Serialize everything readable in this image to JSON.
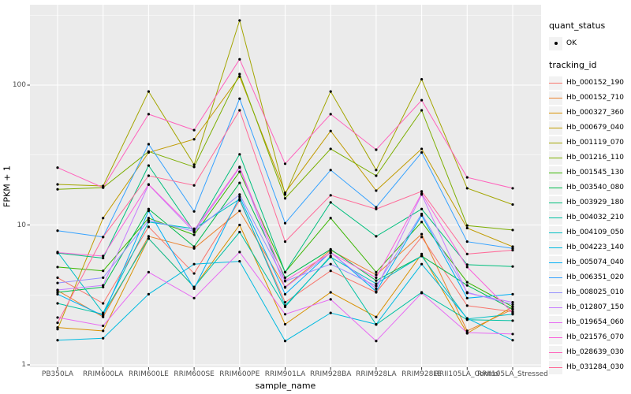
{
  "figure_title": "",
  "legend": {
    "quant_status_title": "quant_status",
    "quant_status_items": [
      {
        "label": "OK",
        "marker": "black-point"
      }
    ],
    "tracking_id_title": "tracking_id"
  },
  "colors": {
    "panel_background": "#EBEBEB",
    "grid": "#FFFFFF",
    "axis_text": "#4D4D4D",
    "point": "#000000",
    "legend_key_background": "#F2F2F2"
  },
  "chart_data": {
    "type": "line",
    "title": "",
    "xlabel": "sample_name",
    "ylabel": "FPKM + 1",
    "y_scale": "log10",
    "ylim": [
      1,
      320
    ],
    "y_ticks": [
      1,
      10,
      100
    ],
    "y_tick_labels": [
      "1",
      "10",
      "100"
    ],
    "grid": true,
    "legend_position": "right",
    "point_marker": "small-black-dot",
    "categories": [
      "PB350LA",
      "RRIM600LA",
      "RRIM600LE",
      "RRIM600SE",
      "RRIM600PE",
      "RRIM901LA",
      "RRIM928BA",
      "RRIM928LA",
      "RRIM928LE",
      "RRII105LA_Control",
      "RRII105LA_Stressed"
    ],
    "series": [
      {
        "name": "Hb_000152_190",
        "color": "#F8766D",
        "values": [
          4.2,
          2.75,
          9.7,
          4.5,
          15.0,
          2.8,
          4.7,
          3.3,
          8.2,
          2.65,
          2.4
        ]
      },
      {
        "name": "Hb_000152_710",
        "color": "#EA8331",
        "values": [
          3.4,
          2.2,
          8.3,
          6.8,
          12.6,
          3.6,
          6.6,
          4.4,
          8.6,
          1.75,
          2.5
        ]
      },
      {
        "name": "Hb_000327_360",
        "color": "#D89000",
        "values": [
          1.85,
          1.75,
          8.0,
          3.6,
          10.0,
          1.95,
          3.3,
          2.2,
          6.2,
          1.68,
          2.6
        ]
      },
      {
        "name": "Hb_000679_040",
        "color": "#C09B00",
        "values": [
          1.8,
          11.2,
          33.0,
          41.0,
          115.0,
          17.0,
          47.0,
          17.6,
          35.0,
          9.5,
          7.0
        ]
      },
      {
        "name": "Hb_001119_070",
        "color": "#A3A500",
        "values": [
          19.5,
          19.0,
          90.0,
          27.0,
          290.0,
          16.5,
          90.0,
          24.7,
          110.0,
          18.3,
          14.0
        ]
      },
      {
        "name": "Hb_001216_110",
        "color": "#7CAE00",
        "values": [
          18.0,
          18.5,
          33.5,
          26.0,
          120.0,
          15.5,
          35.0,
          22.5,
          66.0,
          9.9,
          9.2
        ]
      },
      {
        "name": "Hb_001545_130",
        "color": "#39B600",
        "values": [
          5.0,
          4.7,
          11.2,
          8.5,
          24.0,
          4.6,
          11.2,
          4.6,
          10.5,
          3.9,
          2.6
        ]
      },
      {
        "name": "Hb_003540_080",
        "color": "#00BB4E",
        "values": [
          3.3,
          3.6,
          13.0,
          7.0,
          20.0,
          4.2,
          6.7,
          4.0,
          6.0,
          3.7,
          2.5
        ]
      },
      {
        "name": "Hb_003929_180",
        "color": "#00BF7D",
        "values": [
          6.3,
          5.8,
          26.6,
          9.0,
          32.0,
          4.6,
          14.5,
          8.3,
          13.0,
          5.2,
          5.05
        ]
      },
      {
        "name": "Hb_004032_210",
        "color": "#00C1A3",
        "values": [
          2.75,
          2.3,
          8.0,
          3.6,
          8.9,
          2.6,
          6.0,
          1.94,
          3.3,
          2.1,
          2.07
        ]
      },
      {
        "name": "Hb_004109_050",
        "color": "#00BFC4",
        "values": [
          6.4,
          2.35,
          10.5,
          9.4,
          15.3,
          2.65,
          5.9,
          3.8,
          6.0,
          2.13,
          2.3
        ]
      },
      {
        "name": "Hb_004223_140",
        "color": "#00BAE0",
        "values": [
          1.5,
          1.55,
          3.2,
          5.25,
          5.5,
          1.48,
          2.35,
          1.95,
          5.25,
          2.15,
          1.5
        ]
      },
      {
        "name": "Hb_005074_040",
        "color": "#00B0F6",
        "values": [
          3.2,
          2.25,
          12.6,
          3.5,
          15.9,
          3.2,
          6.4,
          3.35,
          11.7,
          3.0,
          3.2
        ]
      },
      {
        "name": "Hb_006351_020",
        "color": "#35A2FF",
        "values": [
          9.1,
          8.2,
          37.8,
          12.5,
          80.0,
          10.3,
          24.7,
          13.4,
          33.0,
          7.6,
          6.8
        ]
      },
      {
        "name": "Hb_008025_010",
        "color": "#9590FF",
        "values": [
          3.85,
          4.2,
          10.8,
          9.0,
          16.5,
          3.96,
          5.25,
          3.66,
          12.0,
          3.3,
          2.7
        ]
      },
      {
        "name": "Hb_012807_150",
        "color": "#C77CFF",
        "values": [
          3.43,
          3.7,
          19.4,
          8.9,
          25.7,
          3.57,
          6.35,
          3.5,
          16.5,
          3.26,
          2.8
        ]
      },
      {
        "name": "Hb_019654_060",
        "color": "#E76BF3",
        "values": [
          2.18,
          1.9,
          4.6,
          3.0,
          6.4,
          2.3,
          2.94,
          1.48,
          3.26,
          1.7,
          1.66
        ]
      },
      {
        "name": "Hb_021576_070",
        "color": "#FA62DB",
        "values": [
          6.35,
          6.0,
          19.5,
          9.2,
          26.0,
          4.0,
          6.3,
          4.2,
          16.8,
          5.0,
          2.35
        ]
      },
      {
        "name": "Hb_028639_030",
        "color": "#FF62BC",
        "values": [
          25.7,
          18.5,
          62.0,
          47.7,
          153.0,
          27.4,
          62.0,
          34.5,
          78.0,
          21.9,
          18.3
        ]
      },
      {
        "name": "Hb_031284_030",
        "color": "#FF6A98",
        "values": [
          2.0,
          8.2,
          22.5,
          19.2,
          66.0,
          7.6,
          16.3,
          13.0,
          17.4,
          6.2,
          6.6
        ]
      }
    ]
  }
}
